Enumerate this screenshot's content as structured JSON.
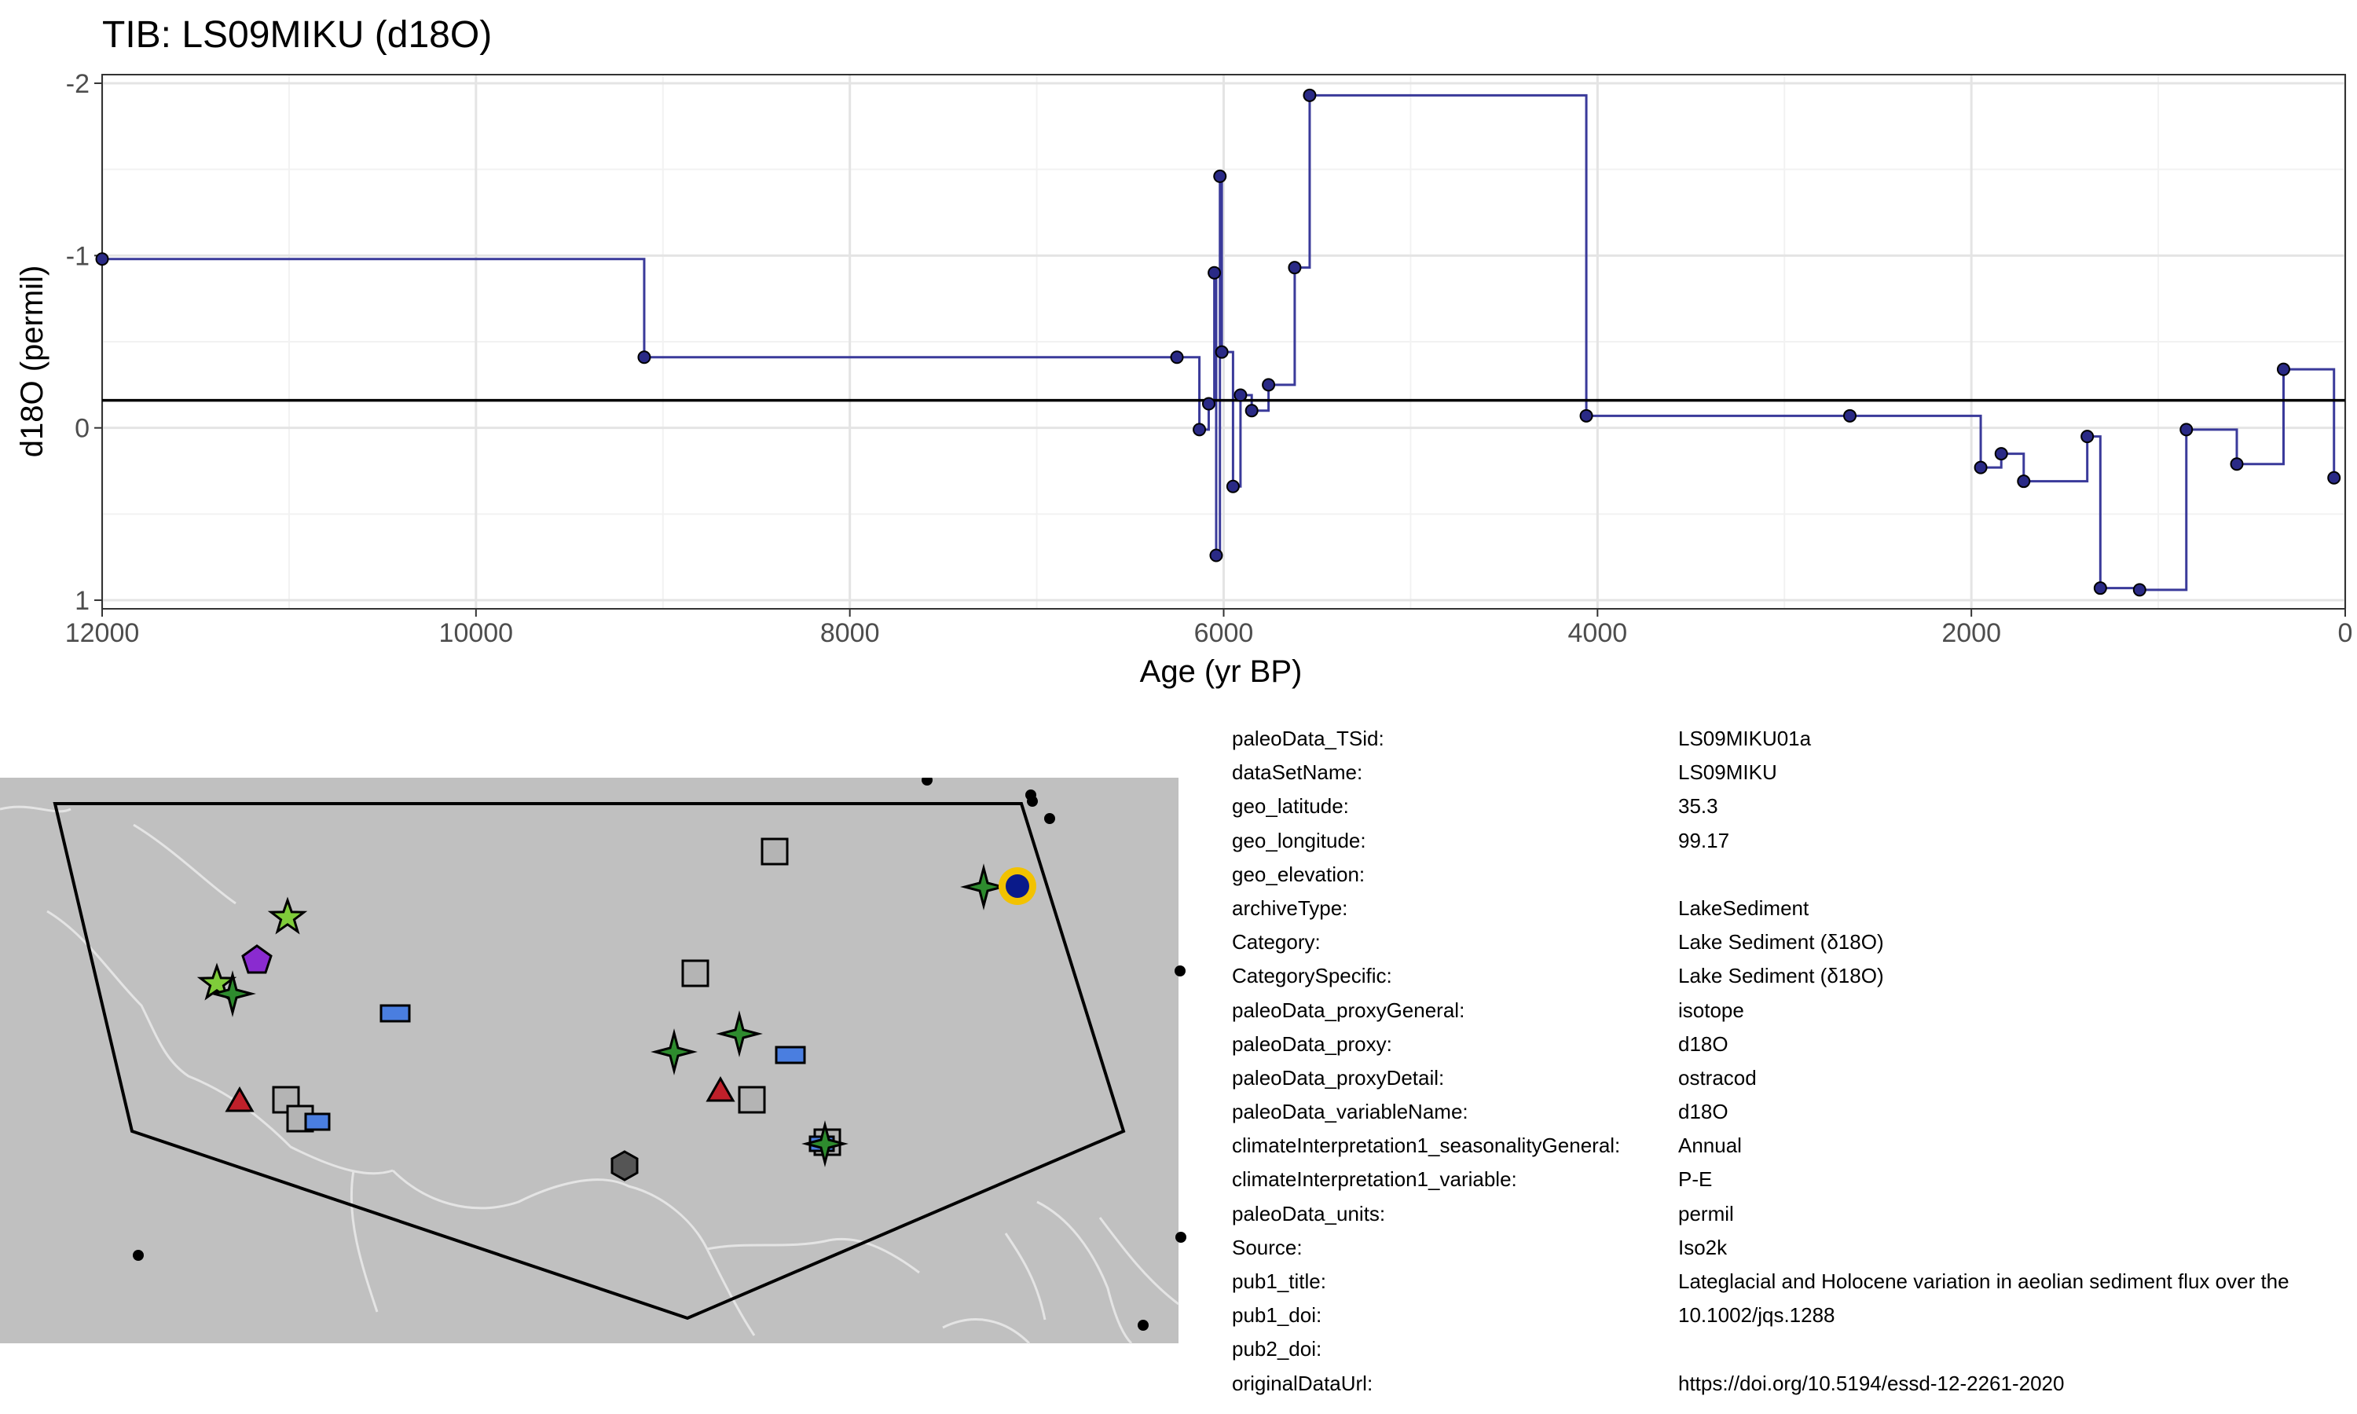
{
  "title": "TIB: LS09MIKU (d18O)",
  "chart_data": {
    "type": "line",
    "title": "TIB: LS09MIKU (d18O)",
    "xlabel": "Age (yr BP)",
    "ylabel": "d18O (permil)",
    "xlim": [
      12000,
      0
    ],
    "ylim": [
      1.05,
      -2.05
    ],
    "y_axis_reversed": true,
    "x_axis_reversed": true,
    "x_ticks": [
      "12000",
      "10000",
      "8000",
      "6000",
      "4000",
      "2000",
      "0"
    ],
    "y_ticks": [
      "-2",
      "-1",
      "0",
      "1"
    ],
    "grid": true,
    "mean_line": -0.16,
    "step": true,
    "series_color": "#3a3a9a",
    "points": [
      {
        "x": 12000,
        "y": -0.98
      },
      {
        "x": 9100,
        "y": -0.41
      },
      {
        "x": 6250,
        "y": -0.41
      },
      {
        "x": 6130,
        "y": 0.01
      },
      {
        "x": 6080,
        "y": -0.14
      },
      {
        "x": 6050,
        "y": -0.9
      },
      {
        "x": 6040,
        "y": 0.74
      },
      {
        "x": 6020,
        "y": -1.46
      },
      {
        "x": 6010,
        "y": -0.44
      },
      {
        "x": 5950,
        "y": 0.34
      },
      {
        "x": 5910,
        "y": -0.19
      },
      {
        "x": 5850,
        "y": -0.1
      },
      {
        "x": 5760,
        "y": -0.25
      },
      {
        "x": 5620,
        "y": -0.93
      },
      {
        "x": 5540,
        "y": -1.93
      },
      {
        "x": 4060,
        "y": -0.07
      },
      {
        "x": 2650,
        "y": -0.07
      },
      {
        "x": 1950,
        "y": 0.23
      },
      {
        "x": 1840,
        "y": 0.15
      },
      {
        "x": 1720,
        "y": 0.31
      },
      {
        "x": 1380,
        "y": 0.05
      },
      {
        "x": 1310,
        "y": 0.93
      },
      {
        "x": 1100,
        "y": 0.94
      },
      {
        "x": 850,
        "y": 0.01
      },
      {
        "x": 580,
        "y": 0.21
      },
      {
        "x": 330,
        "y": -0.34
      },
      {
        "x": 60,
        "y": 0.29
      }
    ]
  },
  "map": {
    "target_marker": "blue circle with yellow ring",
    "background_color": "#c0c0c0",
    "marker_colors": {
      "light_green_star": "#7fcc3a",
      "dark_green_star": "#2e8b2e",
      "purple_pentagon": "#8a2bd0",
      "blue_rect": "#4a7ee0",
      "red_triangle": "#c0202a",
      "gray_square": "#b4b4b4",
      "dark_hexagon": "#555555",
      "target": "#0a1a8a",
      "target_ring": "#f2c200"
    }
  },
  "metadata": [
    {
      "key": "paleoData_TSid:",
      "value": "LS09MIKU01a"
    },
    {
      "key": "dataSetName:",
      "value": "LS09MIKU"
    },
    {
      "key": "geo_latitude:",
      "value": "35.3"
    },
    {
      "key": "geo_longitude:",
      "value": "99.17"
    },
    {
      "key": "geo_elevation:",
      "value": ""
    },
    {
      "key": "archiveType:",
      "value": "LakeSediment"
    },
    {
      "key": "Category:",
      "value": "Lake Sediment (δ18O)"
    },
    {
      "key": "CategorySpecific:",
      "value": "Lake Sediment (δ18O)"
    },
    {
      "key": "paleoData_proxyGeneral:",
      "value": "isotope"
    },
    {
      "key": "paleoData_proxy:",
      "value": "d18O"
    },
    {
      "key": "paleoData_proxyDetail:",
      "value": "ostracod"
    },
    {
      "key": "paleoData_variableName:",
      "value": "d18O"
    },
    {
      "key": "climateInterpretation1_seasonalityGeneral:",
      "value": "Annual"
    },
    {
      "key": "climateInterpretation1_variable:",
      "value": "P-E"
    },
    {
      "key": "paleoData_units:",
      "value": "permil"
    },
    {
      "key": "Source:",
      "value": "Iso2k"
    },
    {
      "key": "pub1_title:",
      "value": "Lateglacial and Holocene variation in aeolian sediment flux over the"
    },
    {
      "key": "pub1_doi:",
      "value": "10.1002/jqs.1288"
    },
    {
      "key": "pub2_doi:",
      "value": ""
    },
    {
      "key": "originalDataUrl:",
      "value": "https://doi.org/10.5194/essd-12-2261-2020"
    }
  ]
}
